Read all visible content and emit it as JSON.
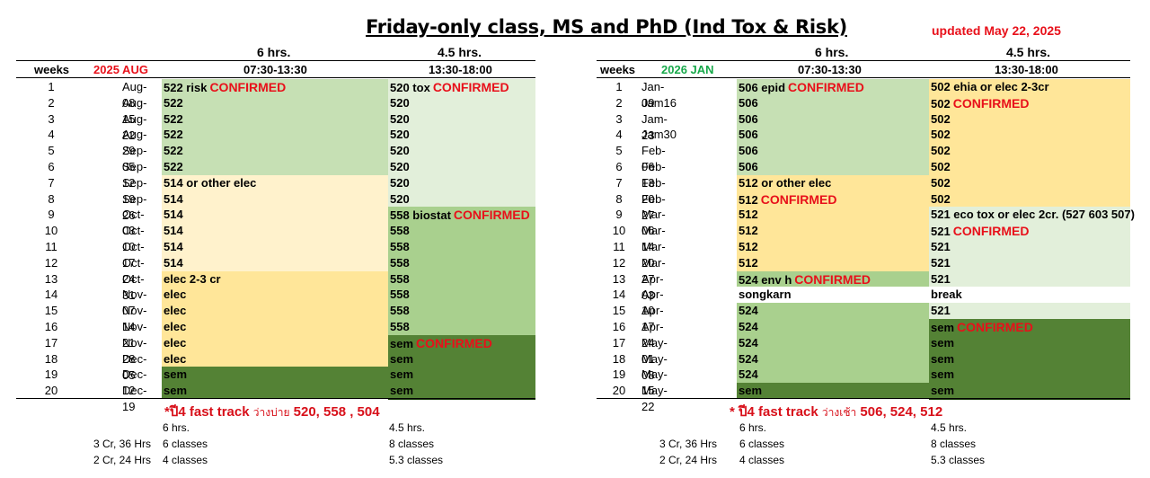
{
  "title": "Friday-only class, MS and PhD (Ind Tox & Risk)",
  "updated": "updated May 22, 2025",
  "colors": {
    "light_green": "#e2efda",
    "mid_green": "#c6e0b4",
    "green": "#a9d08e",
    "dark_green": "#548235",
    "cream": "#fff2cc",
    "yellow": "#ffe699",
    "confirmed_red": "#e8101a"
  },
  "left": {
    "hrs_am": "6 hrs.",
    "hrs_pm": "4.5 hrs.",
    "weeks_label": "weeks",
    "term": "2025 AUG",
    "time_am": "07:30-13:30",
    "time_pm": "13:30-18:00",
    "rows": [
      {
        "week": "1",
        "date": "Aug-08",
        "am": "522 risk",
        "am_cf": "CONFIRMED",
        "pm": "520 tox",
        "pm_cf": "CONFIRMED",
        "am_c": "mid_green",
        "pm_c": "light_green"
      },
      {
        "week": "2",
        "date": "Aug-15",
        "am": "522",
        "am_cf": "",
        "pm": "520",
        "pm_cf": "",
        "am_c": "mid_green",
        "pm_c": "light_green"
      },
      {
        "week": "3",
        "date": "Aug-22",
        "am": "522",
        "am_cf": "",
        "pm": "520",
        "pm_cf": "",
        "am_c": "mid_green",
        "pm_c": "light_green"
      },
      {
        "week": "4",
        "date": "Aug-29",
        "am": "522",
        "am_cf": "",
        "pm": "520",
        "pm_cf": "",
        "am_c": "mid_green",
        "pm_c": "light_green"
      },
      {
        "week": "5",
        "date": "Sep-05",
        "am": "522",
        "am_cf": "",
        "pm": "520",
        "pm_cf": "",
        "am_c": "mid_green",
        "pm_c": "light_green"
      },
      {
        "week": "6",
        "date": "Sep-12",
        "am": "522",
        "am_cf": "",
        "pm": "520",
        "pm_cf": "",
        "am_c": "mid_green",
        "pm_c": "light_green"
      },
      {
        "week": "7",
        "date": "Sep-19",
        "am": "514 or other elec",
        "am_cf": "",
        "pm": "520",
        "pm_cf": "",
        "am_c": "cream",
        "pm_c": "light_green"
      },
      {
        "week": "8",
        "date": "Sep-26",
        "am": "514",
        "am_cf": "",
        "pm": "520",
        "pm_cf": "",
        "am_c": "cream",
        "pm_c": "light_green"
      },
      {
        "week": "9",
        "date": "Oct-03",
        "am": "514",
        "am_cf": "",
        "pm": "558 biostat",
        "pm_cf": "CONFIRMED",
        "am_c": "cream",
        "pm_c": "green"
      },
      {
        "week": "10",
        "date": "Oct-10",
        "am": "514",
        "am_cf": "",
        "pm": "558",
        "pm_cf": "",
        "am_c": "cream",
        "pm_c": "green"
      },
      {
        "week": "11",
        "date": "Oct-17",
        "am": "514",
        "am_cf": "",
        "pm": "558",
        "pm_cf": "",
        "am_c": "cream",
        "pm_c": "green"
      },
      {
        "week": "12",
        "date": "Oct-24",
        "am": "514",
        "am_cf": "",
        "pm": "558",
        "pm_cf": "",
        "am_c": "cream",
        "pm_c": "green"
      },
      {
        "week": "13",
        "date": "Oct-31",
        "am": "elec 2-3 cr",
        "am_cf": "",
        "pm": "558",
        "pm_cf": "",
        "am_c": "yellow",
        "pm_c": "green"
      },
      {
        "week": "14",
        "date": "Nov-07",
        "am": "elec",
        "am_cf": "",
        "pm": "558",
        "pm_cf": "",
        "am_c": "yellow",
        "pm_c": "green"
      },
      {
        "week": "15",
        "date": "Nov-14",
        "am": "elec",
        "am_cf": "",
        "pm": "558",
        "pm_cf": "",
        "am_c": "yellow",
        "pm_c": "green"
      },
      {
        "week": "16",
        "date": "Nov-21",
        "am": "elec",
        "am_cf": "",
        "pm": "558",
        "pm_cf": "",
        "am_c": "yellow",
        "pm_c": "green"
      },
      {
        "week": "17",
        "date": "Nov-28",
        "am": "elec",
        "am_cf": "",
        "pm": "sem",
        "pm_cf": "CONFIRMED",
        "am_c": "yellow",
        "pm_c": "dark_green"
      },
      {
        "week": "18",
        "date": "Dec-05",
        "am": "elec",
        "am_cf": "",
        "pm": "sem",
        "pm_cf": "",
        "am_c": "yellow",
        "pm_c": "dark_green"
      },
      {
        "week": "19",
        "date": "Dec-12",
        "am": "sem",
        "am_cf": "",
        "pm": "sem",
        "pm_cf": "",
        "am_c": "dark_green",
        "pm_c": "dark_green"
      },
      {
        "week": "20",
        "date": "Dec-19",
        "am": "sem",
        "am_cf": "",
        "pm": "sem",
        "pm_cf": "",
        "am_c": "dark_green",
        "pm_c": "dark_green"
      }
    ],
    "fast_track": "*ปี4 fast track",
    "fast_track_thai": "ว่างบ่าย",
    "fast_track_courses": "520, 558 , 504",
    "foot_hrs_am": "6 hrs.",
    "foot_hrs_pm": "4.5 hrs.",
    "foot_rows": [
      {
        "label": "3 Cr, 36 Hrs",
        "am": "6 classes",
        "pm": "8 classes"
      },
      {
        "label": "2 Cr, 24 Hrs",
        "am": "4 classes",
        "pm": "5.3 classes"
      }
    ]
  },
  "right": {
    "hrs_am": "6 hrs.",
    "hrs_pm": "4.5 hrs.",
    "weeks_label": "weeks",
    "term": "2026 JAN",
    "time_am": "07:30-13:30",
    "time_pm": "13:30-18:00",
    "rows": [
      {
        "week": "1",
        "date": "Jan-09",
        "am": "506 epid",
        "am_cf": "CONFIRMED",
        "pm": "502 ehia or elec 2-3cr",
        "pm_cf": "",
        "am_c": "mid_green",
        "pm_c": "yellow"
      },
      {
        "week": "2",
        "date": "Jam16",
        "am": "506",
        "am_cf": "",
        "pm": "502",
        "pm_cf": "CONFIRMED",
        "am_c": "mid_green",
        "pm_c": "yellow"
      },
      {
        "week": "3",
        "date": "Jam-23",
        "am": "506",
        "am_cf": "",
        "pm": "502",
        "pm_cf": "",
        "am_c": "mid_green",
        "pm_c": "yellow"
      },
      {
        "week": "4",
        "date": "Jam30",
        "am": "506",
        "am_cf": "",
        "pm": "502",
        "pm_cf": "",
        "am_c": "mid_green",
        "pm_c": "yellow"
      },
      {
        "week": "5",
        "date": "Feb-06",
        "am": "506",
        "am_cf": "",
        "pm": "502",
        "pm_cf": "",
        "am_c": "mid_green",
        "pm_c": "yellow"
      },
      {
        "week": "6",
        "date": "Feb-13",
        "am": "506",
        "am_cf": "",
        "pm": "502",
        "pm_cf": "",
        "am_c": "mid_green",
        "pm_c": "yellow"
      },
      {
        "week": "7",
        "date": "Feb-20",
        "am": "512  or other elec",
        "am_cf": "",
        "pm": "502",
        "pm_cf": "",
        "am_c": "yellow",
        "pm_c": "yellow"
      },
      {
        "week": "8",
        "date": "Feb-27",
        "am": "512",
        "am_cf": "CONFIRMED",
        "pm": "502",
        "pm_cf": "",
        "am_c": "yellow",
        "pm_c": "yellow"
      },
      {
        "week": "9",
        "date": "Mar-06",
        "am": "512",
        "am_cf": "",
        "pm": "521 eco tox or elec 2cr. (527 603 507)",
        "pm_cf": "",
        "am_c": "yellow",
        "pm_c": "light_green"
      },
      {
        "week": "10",
        "date": "Mar-14",
        "am": "512",
        "am_cf": "",
        "pm": "521",
        "pm_cf": "CONFIRMED",
        "am_c": "yellow",
        "pm_c": "light_green"
      },
      {
        "week": "11",
        "date": "Mar-20",
        "am": "512",
        "am_cf": "",
        "pm": "521",
        "pm_cf": "",
        "am_c": "yellow",
        "pm_c": "light_green"
      },
      {
        "week": "12",
        "date": "Mar-27",
        "am": "512",
        "am_cf": "",
        "pm": "521",
        "pm_cf": "",
        "am_c": "yellow",
        "pm_c": "light_green"
      },
      {
        "week": "13",
        "date": "Apr-03",
        "am": "524 env h",
        "am_cf": "CONFIRMED",
        "pm": "521",
        "pm_cf": "",
        "am_c": "green",
        "pm_c": "light_green"
      },
      {
        "week": "14",
        "date": "Apr-10",
        "am": "songkarn",
        "am_cf": "",
        "pm": "break",
        "pm_cf": "",
        "am_c": "white",
        "pm_c": "white"
      },
      {
        "week": "15",
        "date": "Apr-17",
        "am": "524",
        "am_cf": "",
        "pm": "521",
        "pm_cf": "",
        "am_c": "green",
        "pm_c": "light_green"
      },
      {
        "week": "16",
        "date": "Apr-24",
        "am": "524",
        "am_cf": "",
        "pm": "sem",
        "pm_cf": "CONFIRMED",
        "am_c": "green",
        "pm_c": "dark_green"
      },
      {
        "week": "17",
        "date": "May-01",
        "am": "524",
        "am_cf": "",
        "pm": "sem",
        "pm_cf": "",
        "am_c": "green",
        "pm_c": "dark_green"
      },
      {
        "week": "18",
        "date": "May-08",
        "am": "524",
        "am_cf": "",
        "pm": "sem",
        "pm_cf": "",
        "am_c": "green",
        "pm_c": "dark_green"
      },
      {
        "week": "19",
        "date": "May-15",
        "am": "524",
        "am_cf": "",
        "pm": "sem",
        "pm_cf": "",
        "am_c": "green",
        "pm_c": "dark_green"
      },
      {
        "week": "20",
        "date": "May-22",
        "am": "sem",
        "am_cf": "",
        "pm": "sem",
        "pm_cf": "",
        "am_c": "dark_green",
        "pm_c": "dark_green"
      }
    ],
    "fast_track": "* ปี4 fast track",
    "fast_track_thai": "ว่างเช้า",
    "fast_track_courses": "506, 524, 512",
    "foot_hrs_am": "6 hrs.",
    "foot_hrs_pm": "4.5 hrs.",
    "foot_rows": [
      {
        "label": "3 Cr, 36 Hrs",
        "am": "6 classes",
        "pm": "8 classes"
      },
      {
        "label": "2 Cr, 24 Hrs",
        "am": "4 classes",
        "pm": "5.3 classes"
      }
    ]
  }
}
